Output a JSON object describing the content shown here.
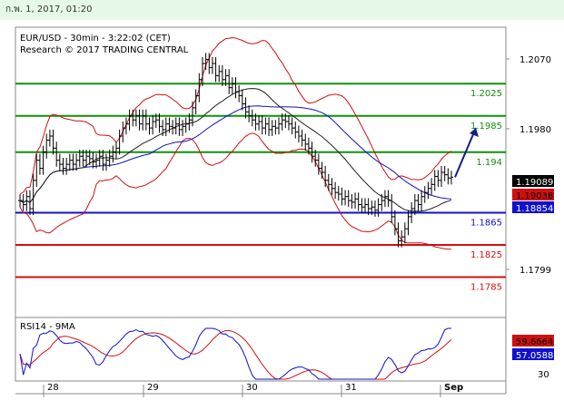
{
  "header": {
    "date": "ก.พ. 1, 2017, 01:20"
  },
  "chart_data": {
    "type": "ohlc",
    "title": "EUR/USD - 30min - 3:22:02 (CET)",
    "subtitle": "Research © 2017 TRADING CENTRAL",
    "x_labels": [
      "28",
      "29",
      "30",
      "31",
      "Sep"
    ],
    "y_axis_labels": [
      "1.2070",
      "1.1980",
      "1.1799"
    ],
    "ylim": [
      1.1735,
      1.2095
    ],
    "levels": [
      {
        "label": "1.2025",
        "value": 1.2025,
        "color": "#109010"
      },
      {
        "label": "1.1985",
        "value": 1.1985,
        "color": "#109010"
      },
      {
        "label": "1.194",
        "value": 1.194,
        "color": "#109010"
      },
      {
        "label": "1.1865",
        "value": 1.1865,
        "color": "#1010d0"
      },
      {
        "label": "1.1825",
        "value": 1.1825,
        "color": "#d01010"
      },
      {
        "label": "1.1785",
        "value": 1.1785,
        "color": "#d01010"
      }
    ],
    "badges": [
      {
        "label": "1.19089",
        "value": 1.19089,
        "bg": "#000000",
        "fg": "#ffffff"
      },
      {
        "label": "1.19038",
        "value": 1.19038,
        "bg": "#d01010",
        "fg": "#000000"
      },
      {
        "label": "1.18854",
        "value": 1.18854,
        "bg": "#1010d0",
        "fg": "#ffffff"
      }
    ],
    "close": [
      1.188,
      1.1875,
      1.1885,
      1.187,
      1.1905,
      1.193,
      1.192,
      1.194,
      1.1955,
      1.196,
      1.1945,
      1.193,
      1.1925,
      1.192,
      1.1925,
      1.193,
      1.1925,
      1.193,
      1.1935,
      1.193,
      1.1935,
      1.1932,
      1.1928,
      1.193,
      1.1935,
      1.1925,
      1.193,
      1.1935,
      1.194,
      1.1945,
      1.196,
      1.197,
      1.1975,
      1.1985,
      1.198,
      1.1985,
      1.1975,
      1.1985,
      1.1975,
      1.197,
      1.1978,
      1.198,
      1.1972,
      1.1968,
      1.1975,
      1.1972,
      1.197,
      1.1975,
      1.1968,
      1.1972,
      1.1975,
      1.198,
      1.1995,
      1.201,
      1.203,
      1.205,
      1.2055,
      1.2045,
      1.205,
      1.2035,
      1.204,
      1.203,
      1.2035,
      1.202,
      1.2025,
      1.2015,
      1.201,
      1.2,
      1.199,
      1.1985,
      1.198,
      1.1975,
      1.1978,
      1.197,
      1.1975,
      1.1968,
      1.1972,
      1.197,
      1.1975,
      1.198,
      1.1978,
      1.1975,
      1.197,
      1.1965,
      1.196,
      1.1955,
      1.195,
      1.1945,
      1.1935,
      1.193,
      1.192,
      1.1915,
      1.1905,
      1.19,
      1.1895,
      1.189,
      1.1888,
      1.1882,
      1.1885,
      1.188,
      1.1878,
      1.1882,
      1.1875,
      1.1872,
      1.1875,
      1.187,
      1.1872,
      1.1868,
      1.1875,
      1.188,
      1.1885,
      1.188,
      1.186,
      1.1845,
      1.183,
      1.1835,
      1.1845,
      1.186,
      1.187,
      1.188,
      1.1875,
      1.1885,
      1.189,
      1.1895,
      1.19,
      1.191,
      1.1905,
      1.1915,
      1.1912,
      1.1908,
      1.1909
    ],
    "rsi": {
      "title": "RSI14 - 9MA",
      "y_axis_labels": [
        "30"
      ],
      "ylim": [
        20,
        80
      ],
      "badges": [
        {
          "label": "59.6664",
          "value": 59.6664,
          "bg": "#d01010",
          "fg": "#000000"
        },
        {
          "label": "57.0588",
          "value": 57.0588,
          "bg": "#1010d0",
          "fg": "#ffffff"
        }
      ]
    }
  }
}
